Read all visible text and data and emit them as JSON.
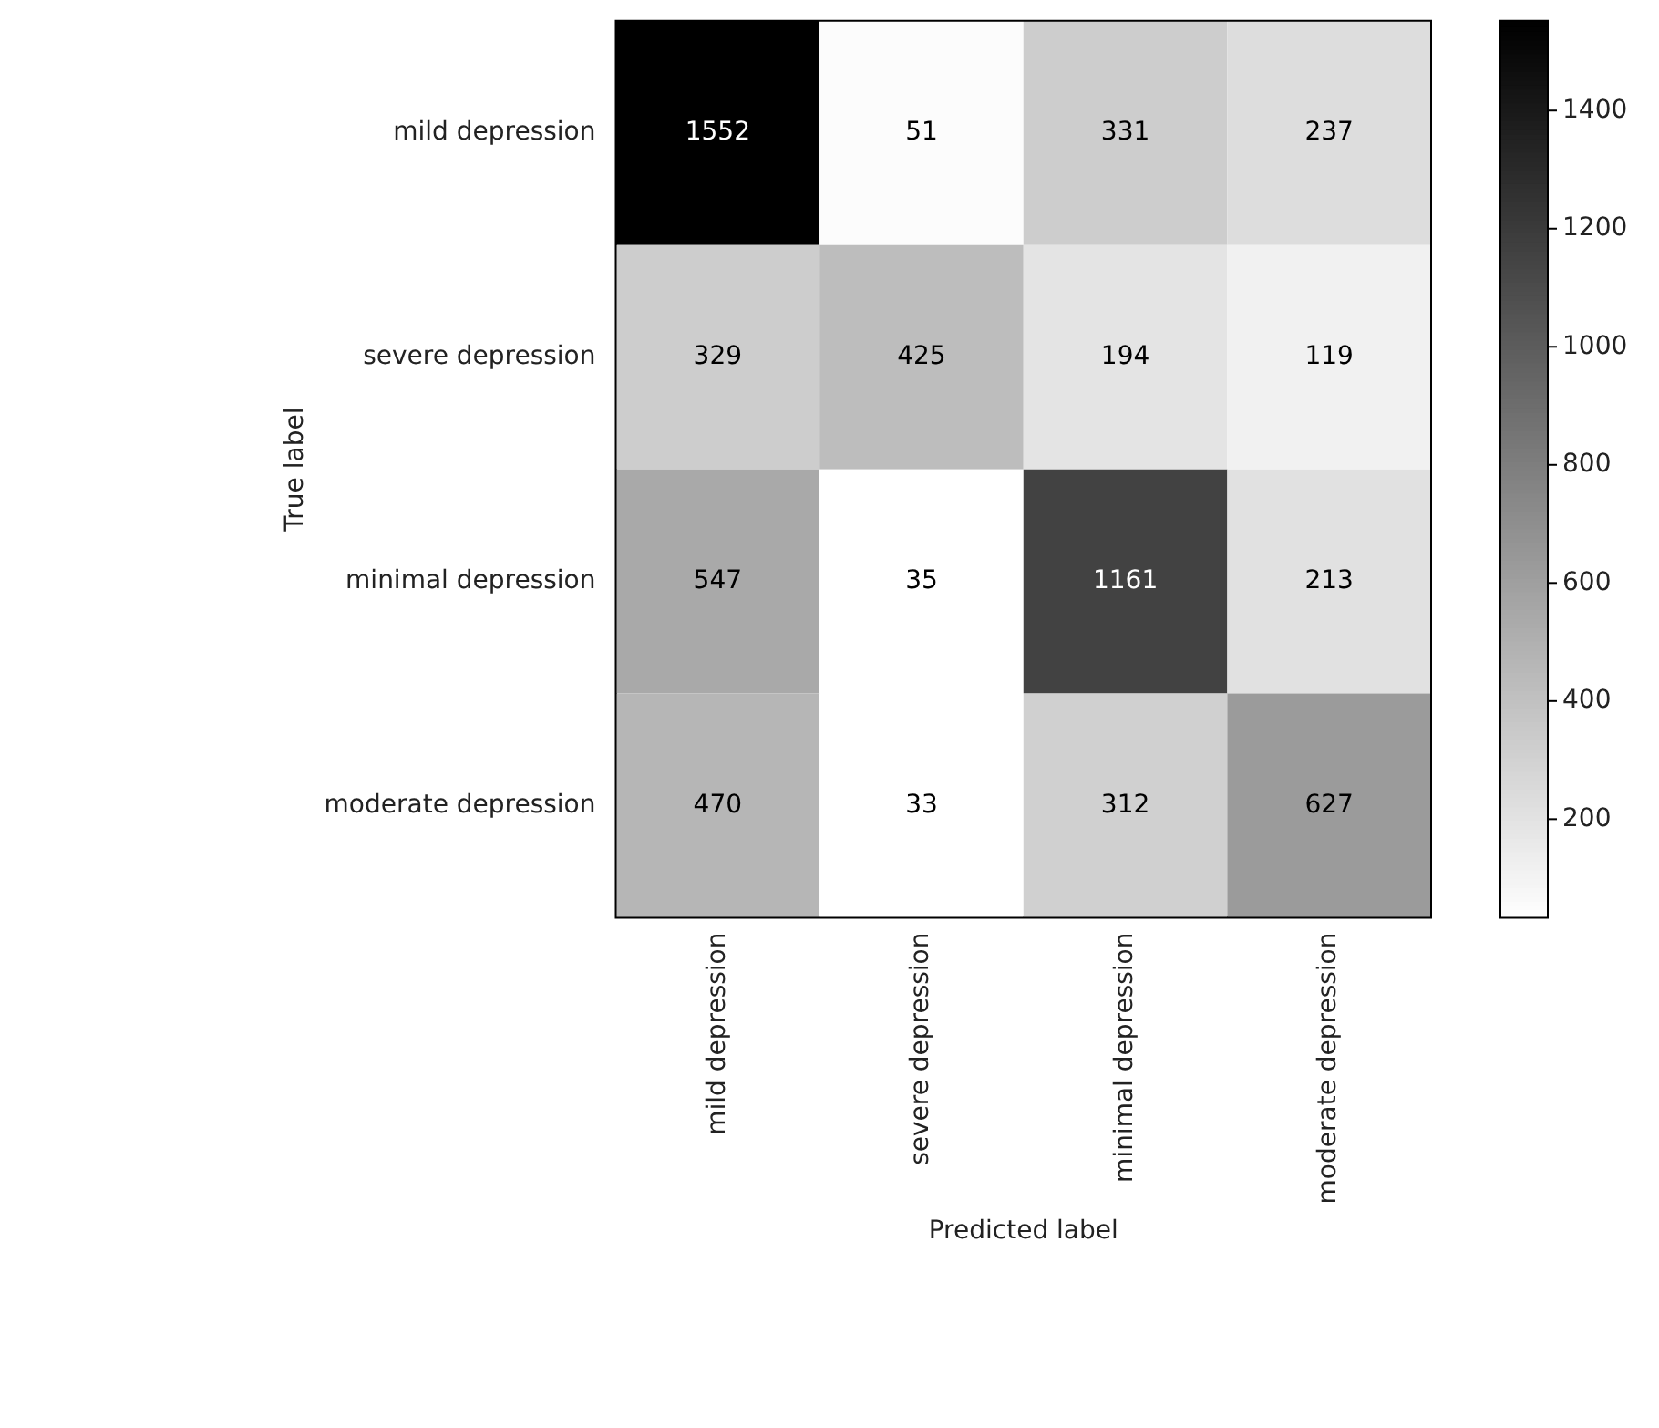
{
  "chart_data": {
    "type": "heatmap",
    "xlabel": "Predicted label",
    "ylabel": "True label",
    "categories": [
      "mild depression",
      "severe depression",
      "minimal depression",
      "moderate depression"
    ],
    "y_categories": [
      "mild depression",
      "severe depression",
      "minimal depression",
      "moderate depression"
    ],
    "cells": [
      [
        1552,
        51,
        331,
        237
      ],
      [
        329,
        425,
        194,
        119
      ],
      [
        547,
        35,
        1161,
        213
      ],
      [
        470,
        33,
        312,
        627
      ]
    ],
    "clim": [
      33,
      1552
    ],
    "cticks": [
      200,
      400,
      600,
      800,
      1000,
      1200,
      1400
    ],
    "data_labels": true
  }
}
